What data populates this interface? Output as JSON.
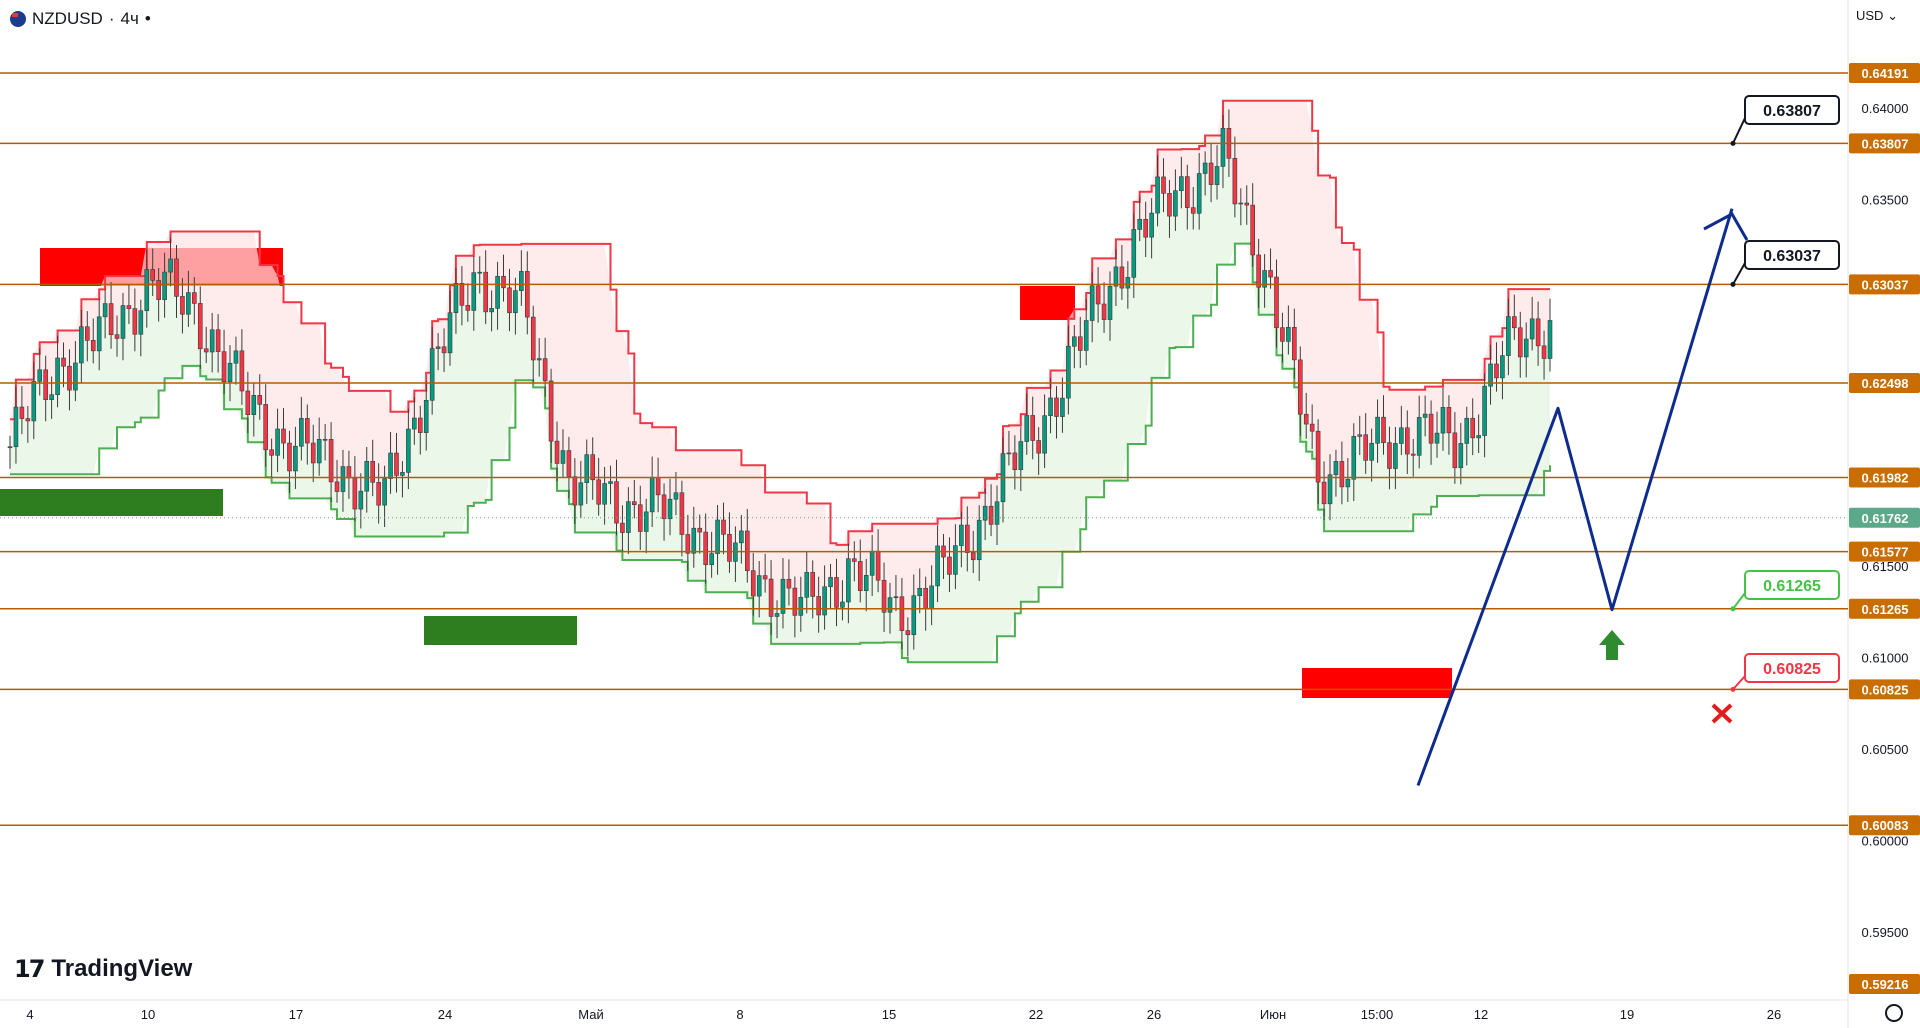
{
  "header": {
    "symbol": "NZDUSD",
    "separator": "·",
    "timeframe": "4ч",
    "dot": "•"
  },
  "currency": "USD",
  "logo": {
    "mark": "17",
    "text": "TradingView"
  },
  "icons": {
    "settings": "settings-gear-icon",
    "flag": "nz-flag-icon"
  },
  "chart_data": {
    "type": "line",
    "title": "",
    "ylim": [
      0.59216,
      0.64425
    ],
    "y_ticks": [
      "0.64000",
      "0.63500",
      "0.61500",
      "0.61000",
      "0.60500",
      "0.60000",
      "0.59500"
    ],
    "x_tick_labels": [
      "4",
      "10",
      "17",
      "24",
      "Май",
      "8",
      "15",
      "22",
      "26",
      "Июн",
      "15:00",
      "12",
      "19",
      "26"
    ],
    "levels": [
      {
        "value": 0.64191,
        "label": "0.64191"
      },
      {
        "value": 0.63807,
        "label": "0.63807"
      },
      {
        "value": 0.63037,
        "label": "0.63037"
      },
      {
        "value": 0.62498,
        "label": "0.62498"
      },
      {
        "value": 0.61982,
        "label": "0.61982"
      },
      {
        "value": 0.61577,
        "label": "0.61577"
      },
      {
        "value": 0.61265,
        "label": "0.61265"
      },
      {
        "value": 0.60825,
        "label": "0.60825"
      },
      {
        "value": 0.60083,
        "label": "0.60083"
      },
      {
        "value": 0.59216,
        "label": "0.59216"
      }
    ],
    "current_price": {
      "value": 0.61762,
      "label": "0.61762"
    },
    "annotations": [
      {
        "label": "0.63807",
        "value": 0.63807,
        "style": "target"
      },
      {
        "label": "0.63037",
        "value": 0.63037,
        "style": "target"
      },
      {
        "label": "0.61265",
        "value": 0.61265,
        "style": "entry"
      },
      {
        "label": "0.60825",
        "value": 0.60825,
        "style": "stop"
      }
    ],
    "price_path": {
      "x": [
        "Jun 7",
        "Jun 15",
        "Jun 17",
        "Jun 23"
      ],
      "y": [
        0.603,
        0.6236,
        0.6126,
        0.6345
      ]
    },
    "price_line": {
      "x": [
        0,
        8,
        16,
        24,
        32,
        40,
        48,
        56,
        64,
        72,
        80,
        88,
        96,
        104,
        112,
        120,
        128,
        136,
        144,
        152,
        160,
        168,
        176,
        184,
        192,
        200,
        208,
        216,
        224,
        232,
        240,
        248,
        256,
        264
      ],
      "y": [
        0.6215,
        0.626,
        0.6275,
        0.6305,
        0.629,
        0.624,
        0.6215,
        0.6205,
        0.6185,
        0.6255,
        0.631,
        0.629,
        0.6195,
        0.6185,
        0.618,
        0.6165,
        0.6145,
        0.6125,
        0.615,
        0.6125,
        0.6145,
        0.6185,
        0.6225,
        0.6275,
        0.6325,
        0.6355,
        0.637,
        0.6305,
        0.62,
        0.621,
        0.6225,
        0.6215,
        0.6265,
        0.6285
      ]
    },
    "colors": {
      "level_line": "#b35c00",
      "level_label_bg": "#c96d00",
      "upper_band": "#f23645",
      "lower_band": "#4caf50",
      "band_fill_red": "#fde4e6",
      "band_fill_green": "#e2f3e0",
      "bullish": "#089981",
      "bearish": "#f23645",
      "projection": "#0d2c8e",
      "entry": "#46c246",
      "stop": "#f23645",
      "current_price": "#5ba88a",
      "zone_red": "#ff0000",
      "zone_green": "#2e7d1e"
    }
  }
}
